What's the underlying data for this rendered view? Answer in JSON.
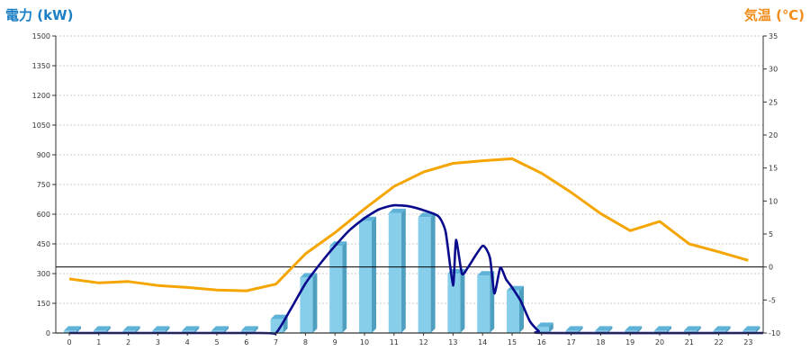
{
  "chart_data": {
    "type": "bar+line",
    "left_axis_title": "電力 (kW)",
    "right_axis_title": "気温 (℃)",
    "colors": {
      "left_title": "#1a7fc4",
      "right_title": "#f28c1a",
      "bar_front": "#87ceeb",
      "bar_side": "#4f9fc0",
      "bar_top": "#5fb3d9",
      "power_line": "#0a0a8c",
      "temp_line": "#f5a500"
    },
    "x_categories": [
      "0",
      "1",
      "2",
      "3",
      "4",
      "5",
      "6",
      "7",
      "8",
      "9",
      "10",
      "11",
      "12",
      "13",
      "14",
      "15",
      "16",
      "17",
      "18",
      "19",
      "20",
      "21",
      "22",
      "23"
    ],
    "left_axis": {
      "min": 0,
      "max": 1500,
      "ticks": [
        "0",
        "150",
        "300",
        "450",
        "600",
        "750",
        "900",
        "1050",
        "1200",
        "1350",
        "1500"
      ]
    },
    "right_axis": {
      "min": -10,
      "max": 35,
      "ticks": [
        "-10",
        "-5",
        "0",
        "5",
        "10",
        "15",
        "20",
        "25",
        "30",
        "35"
      ]
    },
    "grid": true,
    "bars": {
      "name": "電力 (kW)",
      "values": [
        12,
        12,
        12,
        12,
        12,
        12,
        12,
        70,
        280,
        440,
        565,
        605,
        585,
        300,
        290,
        215,
        30,
        12,
        12,
        12,
        12,
        12,
        12,
        12
      ]
    },
    "power_line": {
      "x": [
        0,
        6.5,
        7,
        7.5,
        8,
        8.5,
        9,
        9.5,
        10,
        10.5,
        11,
        11.5,
        12,
        12.5,
        12.75,
        13,
        13.1,
        13.3,
        13.5,
        14,
        14.25,
        14.4,
        14.6,
        14.8,
        15,
        15.3,
        15.6,
        15.9,
        16.2,
        23.5
      ],
      "y": [
        0,
        0,
        0,
        120,
        250,
        350,
        440,
        520,
        580,
        625,
        645,
        640,
        620,
        590,
        510,
        240,
        470,
        300,
        330,
        440,
        380,
        200,
        330,
        270,
        230,
        160,
        60,
        10,
        0,
        0
      ]
    },
    "temp_line": {
      "x": [
        0,
        1,
        2,
        3,
        4,
        5,
        6,
        7,
        8,
        9,
        10,
        11,
        12,
        13,
        14,
        15,
        16,
        17,
        18,
        19,
        20,
        21,
        22,
        23
      ],
      "y": [
        -1.8,
        -2.4,
        -2.2,
        -2.8,
        -3.1,
        -3.5,
        -3.6,
        -2.6,
        2.0,
        5.2,
        8.8,
        12.2,
        14.4,
        15.7,
        16.1,
        16.4,
        14.2,
        11.3,
        8.1,
        5.5,
        6.9,
        3.5,
        2.3,
        1.0
      ]
    }
  }
}
